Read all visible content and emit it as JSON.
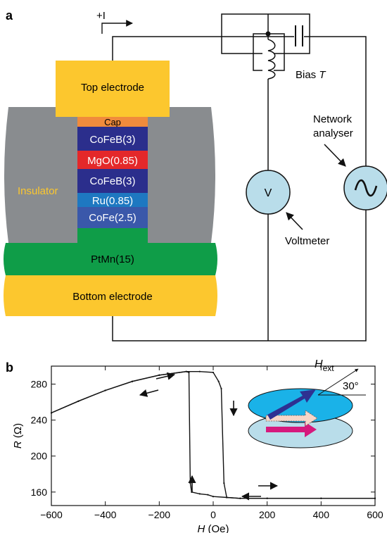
{
  "panel_a": {
    "label": "a",
    "current_label": "+I",
    "layers": {
      "top_electrode": "Top electrode",
      "cap": "Cap",
      "cofeb_top": "CoFeB(3)",
      "mgo": "MgO(0.85)",
      "cofeb_bottom": "CoFeB(3)",
      "ru": "Ru(0.85)",
      "cofe": "CoFe(2.5)",
      "ptmn": "PtMn(15)",
      "bottom_electrode": "Bottom electrode",
      "insulator": "Insulator"
    },
    "circuit": {
      "bias_t": "Bias ",
      "bias_t_italic": "T",
      "voltmeter_symbol": "V",
      "voltmeter_label": "Voltmeter",
      "network_analyser_line1": "Network",
      "network_analyser_line2": "analyser"
    },
    "colors": {
      "electrode": "#FCC72E",
      "insulator": "#898C8F",
      "cap": "#F08B3C",
      "cofeb": "#2B2E8C",
      "mgo": "#E4282A",
      "ru": "#1E78C1",
      "cofe": "#3A58AA",
      "ptmn": "#0F9D48",
      "meter_fill": "#B9DDEA",
      "insulator_text": "#FCC72E"
    }
  },
  "panel_b": {
    "label": "b",
    "inset": {
      "field_label": "H",
      "field_subscript": "ext",
      "angle_label": "30°",
      "colors": {
        "disk": "#1AB2E8",
        "disk_lower": "#B9DDEA",
        "arrow_top": "#2E3192",
        "arrow_mid": "#F6D6C8",
        "arrow_bottom": "#D6197D"
      }
    }
  },
  "chart_data": {
    "type": "line",
    "xlabel": "H",
    "xlabel_unit": "(Oe)",
    "ylabel": "R",
    "ylabel_unit": "(Ω)",
    "xlim": [
      -600,
      600
    ],
    "ylim": [
      145,
      300
    ],
    "xticks": [
      -600,
      -400,
      -200,
      0,
      200,
      400,
      600
    ],
    "yticks": [
      160,
      200,
      240,
      280
    ],
    "grid": false,
    "series": [
      {
        "direction": "sweep-down",
        "x": [
          600,
          400,
          200,
          100,
          50,
          0,
          -20,
          -50,
          -80,
          -85,
          -90,
          -100,
          -200,
          -300,
          -400,
          -500,
          -600
        ],
        "y": [
          153,
          153,
          153,
          153,
          154,
          155,
          157,
          158,
          160,
          170,
          293,
          294,
          290,
          283,
          273,
          261,
          248
        ]
      },
      {
        "direction": "sweep-up",
        "x": [
          -600,
          -500,
          -400,
          -300,
          -200,
          -100,
          -50,
          0,
          20,
          30,
          40,
          50,
          100,
          200,
          400,
          600
        ],
        "y": [
          248,
          261,
          273,
          283,
          290,
          294,
          294,
          293,
          283,
          275,
          170,
          154,
          153,
          153,
          153,
          153
        ]
      }
    ]
  }
}
